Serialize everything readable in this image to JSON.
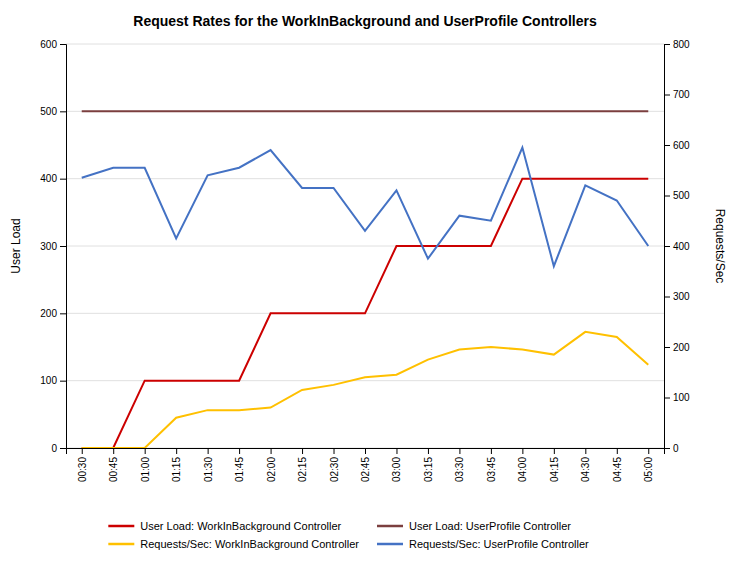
{
  "chart_data": {
    "type": "line",
    "title": "Request Rates for the WorkInBackground and UserProfile Controllers",
    "ylabel": "User Load",
    "y2label": "Requests/Sec",
    "categories": [
      "00:30",
      "00:45",
      "01:00",
      "01:15",
      "01:30",
      "01:45",
      "02:00",
      "02:15",
      "02:30",
      "02:45",
      "03:00",
      "03:15",
      "03:30",
      "03:45",
      "04:00",
      "04:15",
      "04:30",
      "04:45",
      "05:00"
    ],
    "series": [
      {
        "name": "User Load: WorkInBackground Controller",
        "color": "#CC0000",
        "values": [
          0,
          0,
          100,
          100,
          100,
          100,
          200,
          200,
          200,
          200,
          300,
          300,
          300,
          300,
          400,
          400,
          400,
          400,
          400
        ]
      },
      {
        "name": "User Load: UserProfile Controller",
        "color": "#7B3F3F",
        "values": [
          500,
          500,
          500,
          500,
          500,
          500,
          500,
          500,
          500,
          500,
          500,
          500,
          500,
          500,
          500,
          500,
          500,
          500,
          500
        ]
      },
      {
        "name": "Requests/Sec: WorkInBackground Controller",
        "color": "#FFC000",
        "axis": "y2",
        "values": [
          0,
          0,
          0,
          60,
          75,
          75,
          80,
          115,
          125,
          140,
          145,
          175,
          195,
          200,
          195,
          185,
          230,
          220,
          165
        ]
      },
      {
        "name": "Requests/Sec: UserProfile Controller",
        "color": "#4472C4",
        "axis": "y2",
        "values": [
          535,
          555,
          555,
          415,
          540,
          555,
          590,
          515,
          515,
          430,
          510,
          375,
          460,
          450,
          595,
          360,
          520,
          490,
          400
        ]
      }
    ],
    "ylim": [
      0,
      600
    ],
    "yticks": [
      0,
      100,
      200,
      300,
      400,
      500,
      600
    ],
    "y2lim": [
      0,
      800
    ],
    "y2ticks": [
      0,
      100,
      200,
      300,
      400,
      500,
      600,
      700,
      800
    ],
    "grid": true,
    "legend": "bottom"
  }
}
